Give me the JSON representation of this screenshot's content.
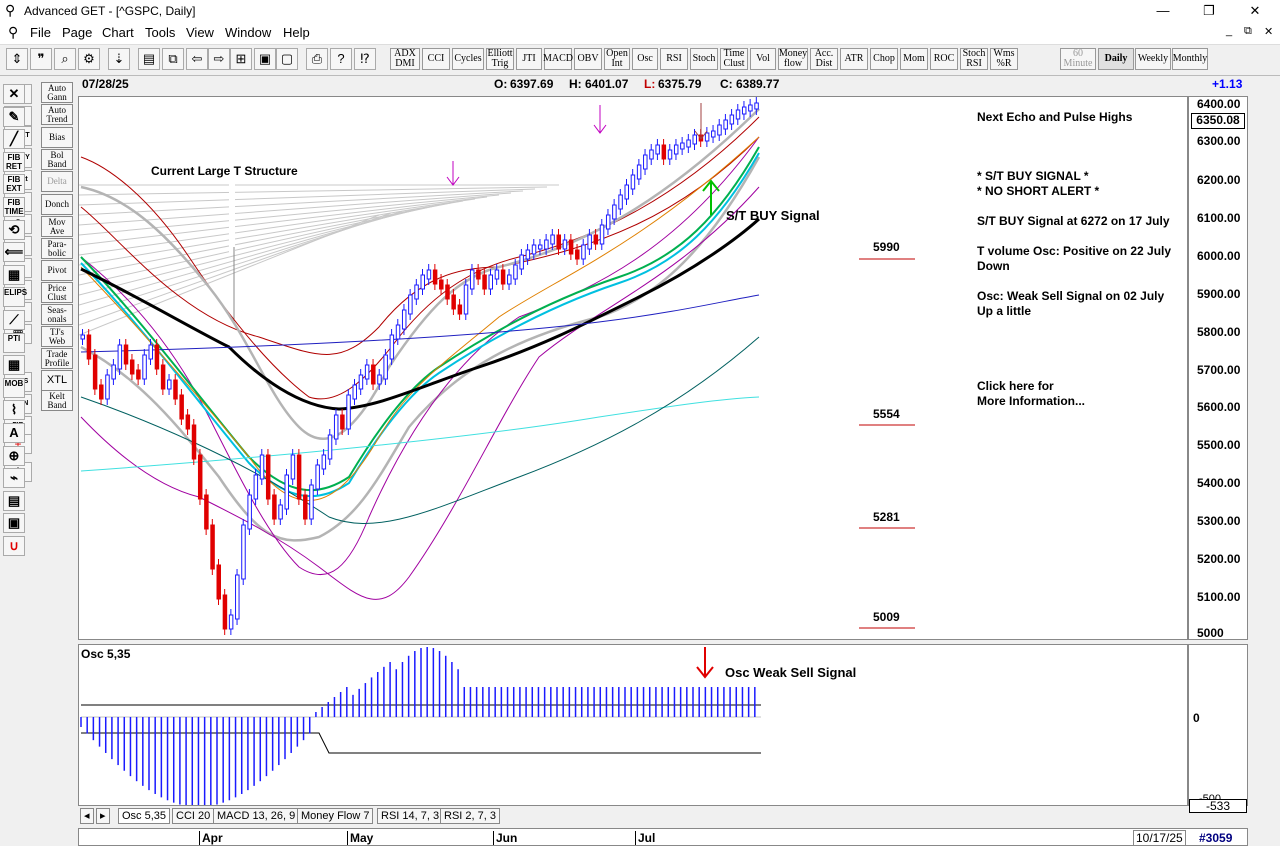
{
  "window": {
    "title": "Advanced GET - [^GSPC, Daily]",
    "minimize": "—",
    "maximize": "❐",
    "close": "✕"
  },
  "menu": {
    "items": [
      "File",
      "Page",
      "Chart",
      "Tools",
      "View",
      "Window",
      "Help"
    ],
    "child_controls": [
      "_",
      "⧉",
      "✕"
    ]
  },
  "toolbar": {
    "indicators": [
      "ADX DMI",
      "CCI",
      "Cycles",
      "Elliott Trig",
      "JTI",
      "MACD",
      "OBV",
      "Open Int",
      "Osc",
      "RSI",
      "Stoch",
      "Time Clust",
      "Vol",
      "Money flow",
      "Acc. Dist",
      "ATR",
      "Chop",
      "Mom",
      "ROC",
      "Stoch RSI",
      "Wms %R"
    ],
    "timeframes": [
      "60 Minute",
      "Daily",
      "Weekly",
      "Monthly"
    ],
    "active_timeframe": "Daily"
  },
  "left_buttons": [
    "Auto Gann",
    "Auto Trend",
    "Bias",
    "Bol Band",
    "Delta",
    "Donch",
    "Mov Ave",
    "Para- bolic",
    "Pivot",
    "Price Clust",
    "Seas- onals",
    "TJ's Web",
    "Trade Profile",
    "XTL",
    "Kelt Band"
  ],
  "left_icons": [
    "RESET",
    "STUDY",
    "Elliott",
    "LINES",
    "GANN",
    "FIB"
  ],
  "right_icons": [
    "FIB RET",
    "FIB EXT",
    "FIB TIME",
    "ELIPS",
    "PTI",
    "MOB"
  ],
  "header": {
    "date": "07/28/25",
    "open_label": "O:",
    "open": "6397.69",
    "high_label": "H:",
    "high": "6401.07",
    "low_label": "L:",
    "low": "6375.79",
    "close_label": "C:",
    "close": "6389.77",
    "change": "+1.13"
  },
  "price_scale": {
    "ticks": [
      "6400.00",
      "6300.00",
      "6200.00",
      "6100.00",
      "6000.00",
      "5900.00",
      "5800.00",
      "5700.00",
      "5600.00",
      "5500.00",
      "5400.00",
      "5300.00",
      "5200.00",
      "5100.00",
      "5000"
    ],
    "marker": "6350.08"
  },
  "annotations": {
    "structure": "Current Large T Structure",
    "st_buy": "S/T BUY Signal",
    "osc_signal": "Osc Weak Sell Signal"
  },
  "levels": [
    "5990",
    "5554",
    "5281",
    "5009"
  ],
  "info_panel": {
    "heading": "Next Echo and Pulse Highs",
    "signal1": "* S/T BUY SIGNAL *",
    "signal2": "* NO SHORT ALERT *",
    "buy_info": "S/T BUY Signal at 6272 on 17 July",
    "tvol_1": "T volume Osc: Positive on 22 July",
    "tvol_2": "Down",
    "osc_1": "Osc: Weak Sell Signal on 02 July",
    "osc_2": "Up a little",
    "click_1": "Click here for",
    "click_2": "More Information..."
  },
  "osc": {
    "title": "Osc 5,35",
    "zero": "0",
    "bottom": "-500",
    "value": "-533"
  },
  "tabs": [
    "Osc 5,35",
    "CCI 20",
    "MACD 13, 26, 9",
    "Money Flow 7",
    "RSI 14, 7, 3",
    "RSI 2, 7, 3"
  ],
  "xaxis": {
    "months": [
      "Apr",
      "May",
      "Jun",
      "Jul"
    ],
    "date": "10/17/25",
    "count": "#3059"
  },
  "colors": {
    "up": "#1a1aff",
    "down": "#e00000",
    "accent_black": "#000000"
  }
}
